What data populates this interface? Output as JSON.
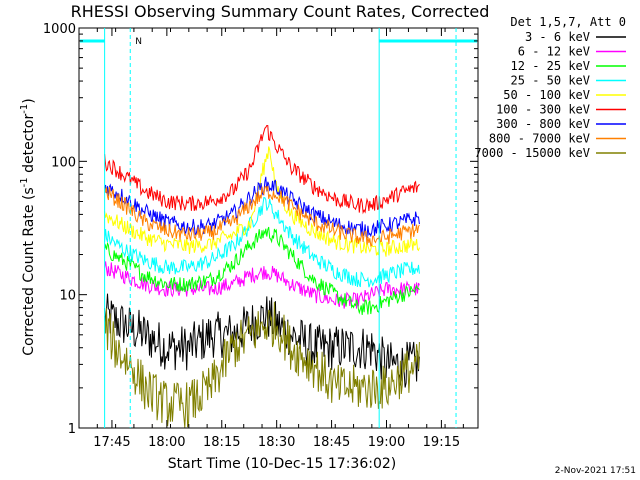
{
  "chart_data": {
    "type": "line",
    "title": "RHESSI Observing Summary Count Rates, Corrected",
    "xlabel": "Start Time (10-Dec-15 17:36:02)",
    "ylabel_main": "Corrected Count Rate (s",
    "ylabel_sup1": "-1",
    "ylabel_mid": " detector",
    "ylabel_sup2": "-1",
    "ylabel_end": ")",
    "yscale": "log",
    "ylim": [
      1,
      1000
    ],
    "y_ticks": [
      1,
      10,
      100,
      1000
    ],
    "y_tick_labels": [
      "1",
      "10",
      "100",
      "1000"
    ],
    "x_unit": "minutes after 17:36:02",
    "xlim": [
      0,
      109
    ],
    "x_ticks": [
      9,
      24,
      39,
      54,
      69,
      84,
      99
    ],
    "x_tick_labels": [
      "17:45",
      "18:00",
      "18:15",
      "18:30",
      "18:45",
      "19:00",
      "19:15"
    ],
    "grid": false,
    "legend_position": "top-right",
    "legend_header": "Det 1,5,7, Att 0",
    "attenuator_marker_label": "N",
    "bg_color": "#ffffff",
    "series": [
      {
        "name": "3 - 6 keV",
        "color": "#000000",
        "values": [
          [
            7,
            7
          ],
          [
            12,
            6
          ],
          [
            18,
            5
          ],
          [
            24,
            4
          ],
          [
            30,
            4
          ],
          [
            36,
            5
          ],
          [
            42,
            5
          ],
          [
            47,
            6
          ],
          [
            51,
            7
          ],
          [
            54,
            6
          ],
          [
            58,
            5
          ],
          [
            64,
            4
          ],
          [
            70,
            4
          ],
          [
            76,
            4
          ],
          [
            80,
            4
          ],
          [
            84,
            3
          ],
          [
            88,
            3
          ],
          [
            93,
            3
          ]
        ]
      },
      {
        "name": "6 - 12 keV",
        "color": "#ff00ff",
        "values": [
          [
            7,
            16
          ],
          [
            12,
            14
          ],
          [
            18,
            12
          ],
          [
            24,
            11
          ],
          [
            30,
            11
          ],
          [
            36,
            11
          ],
          [
            42,
            12
          ],
          [
            47,
            14
          ],
          [
            51,
            15
          ],
          [
            54,
            14
          ],
          [
            58,
            12
          ],
          [
            64,
            10
          ],
          [
            70,
            9
          ],
          [
            76,
            9
          ],
          [
            80,
            10
          ],
          [
            84,
            11
          ],
          [
            88,
            11
          ],
          [
            93,
            11
          ]
        ]
      },
      {
        "name": "12 - 25 keV",
        "color": "#00ff00",
        "values": [
          [
            7,
            22
          ],
          [
            12,
            18
          ],
          [
            18,
            14
          ],
          [
            24,
            12
          ],
          [
            30,
            12
          ],
          [
            36,
            13
          ],
          [
            42,
            17
          ],
          [
            47,
            24
          ],
          [
            51,
            30
          ],
          [
            54,
            27
          ],
          [
            58,
            20
          ],
          [
            64,
            13
          ],
          [
            70,
            10
          ],
          [
            76,
            8
          ],
          [
            80,
            8
          ],
          [
            84,
            9
          ],
          [
            88,
            10
          ],
          [
            93,
            11
          ]
        ]
      },
      {
        "name": "25 - 50 keV",
        "color": "#00ffff",
        "values": [
          [
            7,
            28
          ],
          [
            12,
            22
          ],
          [
            18,
            18
          ],
          [
            24,
            16
          ],
          [
            30,
            16
          ],
          [
            36,
            18
          ],
          [
            42,
            23
          ],
          [
            47,
            34
          ],
          [
            51,
            50
          ],
          [
            54,
            40
          ],
          [
            58,
            28
          ],
          [
            64,
            19
          ],
          [
            70,
            15
          ],
          [
            76,
            13
          ],
          [
            80,
            13
          ],
          [
            84,
            14
          ],
          [
            88,
            15
          ],
          [
            93,
            16
          ]
        ]
      },
      {
        "name": "50 - 100 keV",
        "color": "#ffff00",
        "values": [
          [
            7,
            40
          ],
          [
            12,
            33
          ],
          [
            18,
            27
          ],
          [
            24,
            24
          ],
          [
            30,
            23
          ],
          [
            36,
            24
          ],
          [
            42,
            28
          ],
          [
            47,
            35
          ],
          [
            50,
            80
          ],
          [
            52,
            130
          ],
          [
            54,
            60
          ],
          [
            58,
            40
          ],
          [
            64,
            30
          ],
          [
            70,
            25
          ],
          [
            76,
            23
          ],
          [
            80,
            22
          ],
          [
            84,
            22
          ],
          [
            88,
            23
          ],
          [
            93,
            24
          ]
        ]
      },
      {
        "name": "100 - 300 keV",
        "color": "#ff0000",
        "values": [
          [
            7,
            100
          ],
          [
            12,
            80
          ],
          [
            18,
            60
          ],
          [
            24,
            50
          ],
          [
            30,
            48
          ],
          [
            36,
            50
          ],
          [
            42,
            60
          ],
          [
            47,
            90
          ],
          [
            51,
            180
          ],
          [
            54,
            130
          ],
          [
            58,
            90
          ],
          [
            64,
            65
          ],
          [
            70,
            52
          ],
          [
            76,
            47
          ],
          [
            80,
            47
          ],
          [
            84,
            52
          ],
          [
            88,
            58
          ],
          [
            93,
            65
          ]
        ]
      },
      {
        "name": "300 - 800 keV",
        "color": "#0000ff",
        "values": [
          [
            7,
            65
          ],
          [
            12,
            55
          ],
          [
            18,
            42
          ],
          [
            24,
            35
          ],
          [
            30,
            32
          ],
          [
            36,
            33
          ],
          [
            42,
            40
          ],
          [
            47,
            55
          ],
          [
            51,
            67
          ],
          [
            54,
            64
          ],
          [
            58,
            52
          ],
          [
            64,
            40
          ],
          [
            70,
            34
          ],
          [
            76,
            31
          ],
          [
            80,
            31
          ],
          [
            84,
            33
          ],
          [
            88,
            35
          ],
          [
            93,
            38
          ]
        ]
      },
      {
        "name": "800 - 7000 keV",
        "color": "#ff8000",
        "values": [
          [
            7,
            60
          ],
          [
            12,
            48
          ],
          [
            18,
            35
          ],
          [
            24,
            30
          ],
          [
            30,
            28
          ],
          [
            36,
            29
          ],
          [
            42,
            35
          ],
          [
            47,
            48
          ],
          [
            51,
            60
          ],
          [
            54,
            57
          ],
          [
            58,
            46
          ],
          [
            64,
            35
          ],
          [
            70,
            30
          ],
          [
            76,
            27
          ],
          [
            80,
            26
          ],
          [
            84,
            27
          ],
          [
            88,
            29
          ],
          [
            93,
            31
          ]
        ]
      },
      {
        "name": "7000 - 15000 keV",
        "color": "#808000",
        "values": [
          [
            7,
            6
          ],
          [
            10,
            4
          ],
          [
            14,
            3
          ],
          [
            18,
            2
          ],
          [
            24,
            1.5
          ],
          [
            30,
            1.5
          ],
          [
            36,
            2
          ],
          [
            42,
            4
          ],
          [
            47,
            5
          ],
          [
            51,
            6
          ],
          [
            54,
            6
          ],
          [
            58,
            4
          ],
          [
            64,
            3
          ],
          [
            70,
            2
          ],
          [
            76,
            2
          ],
          [
            80,
            2
          ],
          [
            84,
            2
          ],
          [
            88,
            2.5
          ],
          [
            93,
            3
          ]
        ]
      }
    ]
  },
  "footer": {
    "timestamp": "2-Nov-2021 17:51"
  }
}
